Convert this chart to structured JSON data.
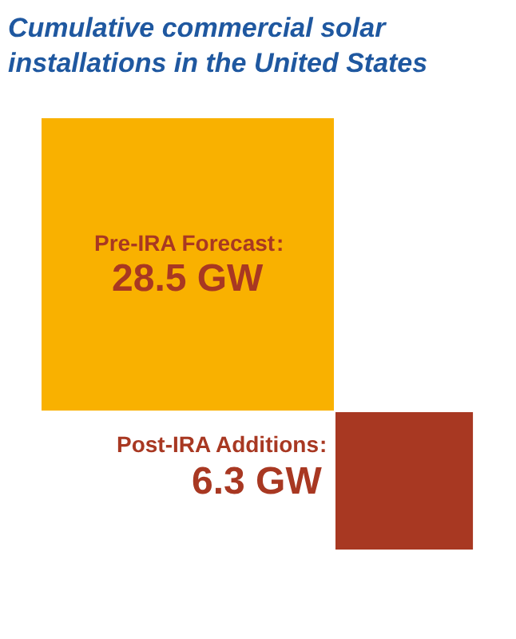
{
  "chart_data": {
    "type": "other",
    "title": "Cumulative commercial solar installations in the United States",
    "categories": [
      "Pre-IRA Forecast",
      "Post-IRA Additions"
    ],
    "annotations": [
      ":",
      ":"
    ],
    "values": [
      28.5,
      6.3
    ],
    "value_labels": [
      "28.5 GW",
      "6.3 GW"
    ],
    "colors": [
      "#f9b100",
      "#a83822"
    ]
  }
}
